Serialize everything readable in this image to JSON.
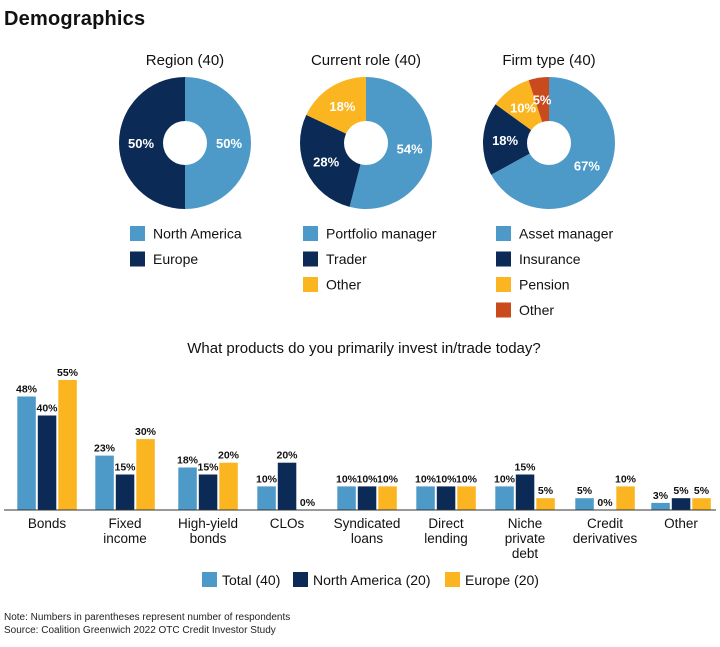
{
  "page": {
    "title": "Demographics"
  },
  "colors": {
    "light_blue": "#4d9ac8",
    "navy": "#0b2a55",
    "yellow": "#fbb520",
    "orange": "#c94a1c"
  },
  "chart_data": [
    {
      "type": "pie",
      "title": "Region (40)",
      "slices": [
        {
          "label": "North America",
          "value": 50,
          "display": "50%",
          "color": "#4d9ac8"
        },
        {
          "label": "Europe",
          "value": 50,
          "display": "50%",
          "color": "#0b2a55"
        }
      ]
    },
    {
      "type": "pie",
      "title": "Current role (40)",
      "slices": [
        {
          "label": "Portfolio manager",
          "value": 54,
          "display": "54%",
          "color": "#4d9ac8"
        },
        {
          "label": "Trader",
          "value": 28,
          "display": "28%",
          "color": "#0b2a55"
        },
        {
          "label": "Other",
          "value": 18,
          "display": "18%",
          "color": "#fbb520"
        }
      ]
    },
    {
      "type": "pie",
      "title": "Firm type (40)",
      "slices": [
        {
          "label": "Asset manager",
          "value": 67,
          "display": "67%",
          "color": "#4d9ac8"
        },
        {
          "label": "Insurance",
          "value": 18,
          "display": "18%",
          "color": "#0b2a55"
        },
        {
          "label": "Pension",
          "value": 10,
          "display": "10%",
          "color": "#fbb520"
        },
        {
          "label": "Other",
          "value": 5,
          "display": "5%",
          "color": "#c94a1c"
        }
      ]
    },
    {
      "type": "bar",
      "title": "What products do you primarily invest in/trade today?",
      "categories": [
        [
          "Bonds"
        ],
        [
          "Fixed",
          "income"
        ],
        [
          "High-yield",
          "bonds"
        ],
        [
          "CLOs"
        ],
        [
          "Syndicated",
          "loans"
        ],
        [
          "Direct",
          "lending"
        ],
        [
          "Niche",
          "private",
          "debt"
        ],
        [
          "Credit",
          "derivatives"
        ],
        [
          "Other"
        ]
      ],
      "series": [
        {
          "name": "Total (40)",
          "color": "#4d9ac8",
          "values": [
            48,
            23,
            18,
            10,
            10,
            10,
            10,
            5,
            3
          ]
        },
        {
          "name": "North America (20)",
          "color": "#0b2a55",
          "values": [
            40,
            15,
            15,
            20,
            10,
            10,
            15,
            0,
            5
          ]
        },
        {
          "name": "Europe (20)",
          "color": "#fbb520",
          "values": [
            55,
            30,
            20,
            0,
            10,
            10,
            5,
            10,
            5
          ]
        }
      ],
      "value_suffix": "%",
      "ylim": [
        0,
        55
      ]
    }
  ],
  "footer": {
    "note": "Note: Numbers in parentheses represent number of respondents",
    "source": "Source: Coalition Greenwich 2022 OTC Credit Investor Study"
  }
}
